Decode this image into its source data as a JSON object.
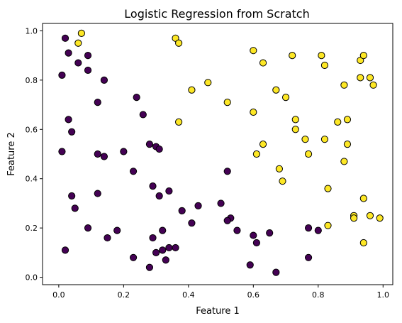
{
  "chart_data": {
    "type": "scatter",
    "title": "Logistic Regression from Scratch",
    "xlabel": "Feature 1",
    "ylabel": "Feature 2",
    "xlim": [
      -0.05,
      1.03
    ],
    "ylim": [
      -0.03,
      1.03
    ],
    "xticks": [
      0.0,
      0.2,
      0.4,
      0.6,
      0.8,
      1.0
    ],
    "xtick_labels": [
      "0.0",
      "0.2",
      "0.4",
      "0.6",
      "0.8",
      "1.0"
    ],
    "yticks": [
      0.0,
      0.2,
      0.4,
      0.6,
      0.8,
      1.0
    ],
    "ytick_labels": [
      "0.0",
      "0.2",
      "0.4",
      "0.6",
      "0.8",
      "1.0"
    ],
    "grid": false,
    "legend": "none",
    "series": [
      {
        "color": "#440154",
        "points": [
          [
            0.02,
            0.97
          ],
          [
            0.03,
            0.91
          ],
          [
            0.06,
            0.87
          ],
          [
            0.09,
            0.9
          ],
          [
            0.09,
            0.84
          ],
          [
            0.01,
            0.82
          ],
          [
            0.14,
            0.8
          ],
          [
            0.12,
            0.71
          ],
          [
            0.24,
            0.73
          ],
          [
            0.26,
            0.66
          ],
          [
            0.03,
            0.64
          ],
          [
            0.04,
            0.59
          ],
          [
            0.01,
            0.51
          ],
          [
            0.12,
            0.5
          ],
          [
            0.14,
            0.49
          ],
          [
            0.2,
            0.51
          ],
          [
            0.28,
            0.54
          ],
          [
            0.3,
            0.53
          ],
          [
            0.31,
            0.52
          ],
          [
            0.23,
            0.43
          ],
          [
            0.12,
            0.34
          ],
          [
            0.29,
            0.37
          ],
          [
            0.31,
            0.33
          ],
          [
            0.34,
            0.35
          ],
          [
            0.04,
            0.33
          ],
          [
            0.05,
            0.28
          ],
          [
            0.38,
            0.27
          ],
          [
            0.43,
            0.29
          ],
          [
            0.52,
            0.43
          ],
          [
            0.5,
            0.3
          ],
          [
            0.53,
            0.24
          ],
          [
            0.52,
            0.23
          ],
          [
            0.55,
            0.19
          ],
          [
            0.41,
            0.22
          ],
          [
            0.09,
            0.2
          ],
          [
            0.18,
            0.19
          ],
          [
            0.15,
            0.16
          ],
          [
            0.32,
            0.19
          ],
          [
            0.29,
            0.16
          ],
          [
            0.3,
            0.1
          ],
          [
            0.32,
            0.11
          ],
          [
            0.34,
            0.12
          ],
          [
            0.36,
            0.12
          ],
          [
            0.23,
            0.08
          ],
          [
            0.33,
            0.07
          ],
          [
            0.28,
            0.04
          ],
          [
            0.02,
            0.11
          ],
          [
            0.6,
            0.17
          ],
          [
            0.61,
            0.14
          ],
          [
            0.65,
            0.18
          ],
          [
            0.77,
            0.2
          ],
          [
            0.8,
            0.19
          ],
          [
            0.59,
            0.05
          ],
          [
            0.67,
            0.02
          ],
          [
            0.77,
            0.08
          ]
        ]
      },
      {
        "color": "#fde725",
        "points": [
          [
            0.07,
            0.99
          ],
          [
            0.06,
            0.95
          ],
          [
            0.36,
            0.97
          ],
          [
            0.37,
            0.95
          ],
          [
            0.6,
            0.92
          ],
          [
            0.63,
            0.87
          ],
          [
            0.72,
            0.9
          ],
          [
            0.81,
            0.9
          ],
          [
            0.82,
            0.86
          ],
          [
            0.93,
            0.88
          ],
          [
            0.94,
            0.9
          ],
          [
            0.93,
            0.81
          ],
          [
            0.96,
            0.81
          ],
          [
            0.97,
            0.78
          ],
          [
            0.88,
            0.78
          ],
          [
            0.46,
            0.79
          ],
          [
            0.41,
            0.76
          ],
          [
            0.52,
            0.71
          ],
          [
            0.67,
            0.76
          ],
          [
            0.7,
            0.73
          ],
          [
            0.6,
            0.67
          ],
          [
            0.37,
            0.63
          ],
          [
            0.73,
            0.64
          ],
          [
            0.73,
            0.6
          ],
          [
            0.76,
            0.56
          ],
          [
            0.86,
            0.63
          ],
          [
            0.89,
            0.64
          ],
          [
            0.82,
            0.56
          ],
          [
            0.89,
            0.54
          ],
          [
            0.63,
            0.54
          ],
          [
            0.61,
            0.5
          ],
          [
            0.77,
            0.5
          ],
          [
            0.88,
            0.47
          ],
          [
            0.68,
            0.44
          ],
          [
            0.69,
            0.39
          ],
          [
            0.83,
            0.36
          ],
          [
            0.94,
            0.32
          ],
          [
            0.91,
            0.25
          ],
          [
            0.91,
            0.24
          ],
          [
            0.96,
            0.25
          ],
          [
            0.99,
            0.24
          ],
          [
            0.83,
            0.21
          ],
          [
            0.94,
            0.14
          ]
        ]
      }
    ]
  }
}
